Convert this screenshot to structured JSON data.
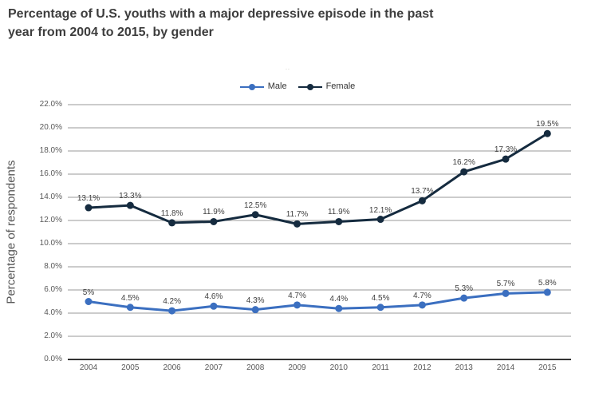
{
  "title": {
    "line1": "Percentage of U.S. youths with a major depressive episode in the past",
    "line2": "year from 2004 to 2015, by gender"
  },
  "legend_note": "..",
  "chart_data": {
    "type": "line",
    "title": "Percentage of U.S. youths with a major depressive episode in the past year from 2004 to 2015, by gender",
    "categories": [
      "2004",
      "2005",
      "2006",
      "2007",
      "2008",
      "2009",
      "2010",
      "2011",
      "2012",
      "2013",
      "2014",
      "2015"
    ],
    "series": [
      {
        "name": "Male",
        "color": "#3b6fc0",
        "values": [
          5,
          4.5,
          4.2,
          4.6,
          4.3,
          4.7,
          4.4,
          4.5,
          4.7,
          5.3,
          5.7,
          5.8
        ],
        "labels": [
          "5%",
          "4.5%",
          "4.2%",
          "4.6%",
          "4.3%",
          "4.7%",
          "4.4%",
          "4.5%",
          "4.7%",
          "5.3%",
          "5.7%",
          "5.8%"
        ]
      },
      {
        "name": "Female",
        "color": "#152b3f",
        "values": [
          13.1,
          13.3,
          11.8,
          11.9,
          12.5,
          11.7,
          11.9,
          12.1,
          13.7,
          16.2,
          17.3,
          19.5
        ],
        "labels": [
          "13.1%",
          "13.3%",
          "11.8%",
          "11.9%",
          "12.5%",
          "11.7%",
          "11.9%",
          "12.1%",
          "13.7%",
          "16.2%",
          "17.3%",
          "19.5%"
        ]
      }
    ],
    "xlabel": "",
    "ylabel": "Percentage of respondents",
    "ylim": [
      0,
      22
    ],
    "ytick_step": 2,
    "ytick_suffix": "%",
    "grid": true,
    "legend_position": "top-center",
    "grid_color": "#9a9a9a",
    "axis_color": "#333333"
  }
}
